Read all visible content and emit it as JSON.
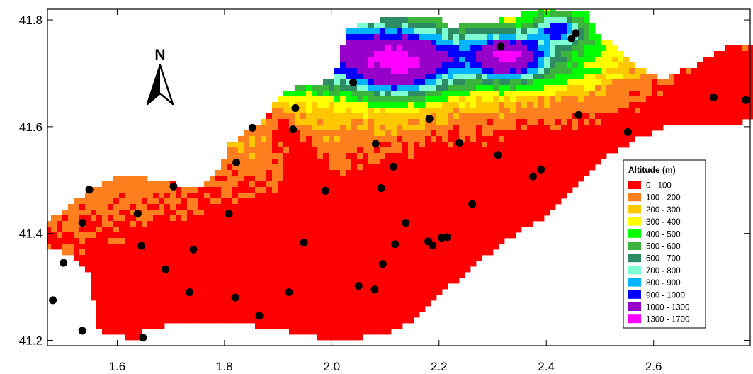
{
  "map": {
    "x_axis": {
      "range": [
        1.47,
        2.78
      ],
      "ticks": [
        "1.6",
        "1.8",
        "2.0",
        "2.2",
        "2.4",
        "2.6"
      ]
    },
    "y_axis": {
      "range": [
        41.19,
        41.82
      ],
      "ticks": [
        "41.2",
        "41.4",
        "41.6",
        "41.8"
      ]
    },
    "north_arrow": {
      "label": "N"
    },
    "legend": {
      "title": "Altitude (m)",
      "placement": "right-center",
      "classes": [
        {
          "label": "0  - 100",
          "color": "#ff0000"
        },
        {
          "label": "100  - 200",
          "color": "#ff7f1e"
        },
        {
          "label": "200  - 300",
          "color": "#ffc800"
        },
        {
          "label": "300  - 400",
          "color": "#ffff00"
        },
        {
          "label": "400  - 500",
          "color": "#00ff00"
        },
        {
          "label": "500  - 600",
          "color": "#3cb43c"
        },
        {
          "label": "600  - 700",
          "color": "#2d8c64"
        },
        {
          "label": "700  - 800",
          "color": "#7fffd4"
        },
        {
          "label": "800  - 900",
          "color": "#00b4ff"
        },
        {
          "label": "900  - 1000",
          "color": "#0000ff"
        },
        {
          "label": "1000  - 1300",
          "color": "#9600c8"
        },
        {
          "label": "1300  - 1700",
          "color": "#ff00ff"
        }
      ]
    },
    "stations": [
      [
        1.48,
        41.275
      ],
      [
        1.5,
        41.345
      ],
      [
        1.535,
        41.218
      ],
      [
        1.535,
        41.42
      ],
      [
        1.548,
        41.482
      ],
      [
        1.638,
        41.437
      ],
      [
        1.645,
        41.377
      ],
      [
        1.648,
        41.205
      ],
      [
        1.69,
        41.333
      ],
      [
        1.705,
        41.488
      ],
      [
        1.735,
        41.29
      ],
      [
        1.742,
        41.37
      ],
      [
        1.808,
        41.437
      ],
      [
        1.82,
        41.28
      ],
      [
        1.822,
        41.533
      ],
      [
        1.852,
        41.598
      ],
      [
        1.865,
        41.246
      ],
      [
        1.92,
        41.29
      ],
      [
        1.928,
        41.595
      ],
      [
        1.932,
        41.635
      ],
      [
        1.948,
        41.383
      ],
      [
        1.988,
        41.48
      ],
      [
        2.04,
        41.683
      ],
      [
        2.05,
        41.302
      ],
      [
        2.08,
        41.295
      ],
      [
        2.082,
        41.568
      ],
      [
        2.092,
        41.485
      ],
      [
        2.095,
        41.343
      ],
      [
        2.115,
        41.525
      ],
      [
        2.118,
        41.38
      ],
      [
        2.138,
        41.42
      ],
      [
        2.18,
        41.385
      ],
      [
        2.182,
        41.615
      ],
      [
        2.188,
        41.378
      ],
      [
        2.205,
        41.392
      ],
      [
        2.215,
        41.393
      ],
      [
        2.238,
        41.57
      ],
      [
        2.262,
        41.455
      ],
      [
        2.31,
        41.547
      ],
      [
        2.315,
        41.75
      ],
      [
        2.375,
        41.507
      ],
      [
        2.39,
        41.52
      ],
      [
        2.447,
        41.765
      ],
      [
        2.455,
        41.775
      ],
      [
        2.46,
        41.622
      ],
      [
        2.552,
        41.59
      ],
      [
        2.712,
        41.655
      ],
      [
        2.772,
        41.65
      ]
    ]
  }
}
